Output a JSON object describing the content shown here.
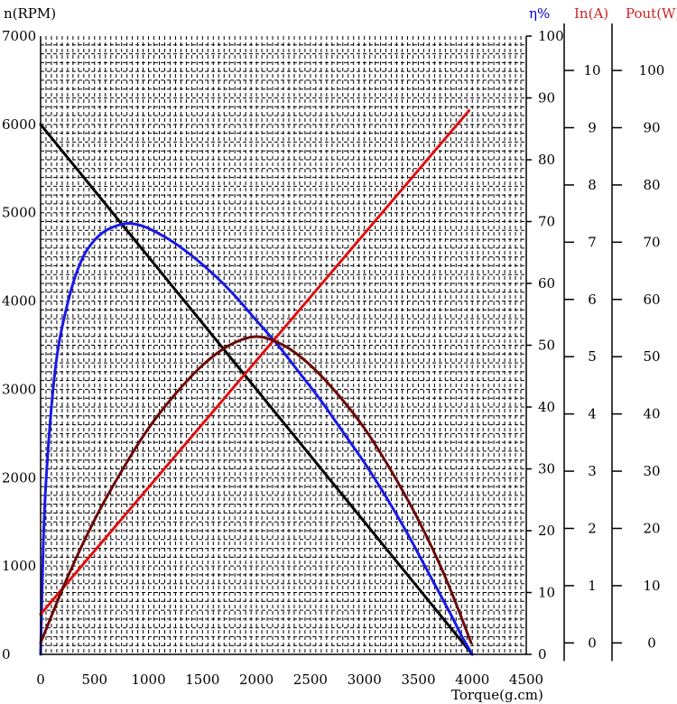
{
  "chart_data": {
    "type": "line",
    "xlabel": "Torque(g.cm)",
    "xlim": [
      0,
      4500
    ],
    "x_ticks": [
      0,
      500,
      1000,
      1500,
      2000,
      2500,
      3000,
      3500,
      4000,
      4500
    ],
    "grid": true,
    "axes": {
      "speed": {
        "label": "n(RPM)",
        "color": "#000000",
        "lim": [
          0,
          7000
        ],
        "ticks": [
          0,
          1000,
          2000,
          3000,
          4000,
          5000,
          6000,
          7000
        ]
      },
      "efficiency": {
        "label": "η%",
        "color": "#0000cc",
        "lim": [
          0,
          100
        ],
        "ticks": [
          0,
          10,
          20,
          30,
          40,
          50,
          60,
          70,
          80,
          90,
          100
        ]
      },
      "current": {
        "label": "In(A)",
        "color": "#cc2222",
        "lim": [
          -0.2,
          10.6
        ],
        "ticks": [
          0,
          1,
          2,
          3,
          4,
          5,
          6,
          7,
          8,
          9,
          10
        ]
      },
      "power": {
        "label": "Pout(W)",
        "color": "#cc2222",
        "lim": [
          -2,
          106
        ],
        "ticks": [
          0,
          10,
          20,
          30,
          40,
          50,
          60,
          70,
          80,
          90,
          100
        ]
      }
    },
    "series": [
      {
        "axis": "speed",
        "color": "#000000",
        "x": [
          0,
          4000
        ],
        "y": [
          6000,
          0
        ]
      },
      {
        "axis": "efficiency",
        "color": "#1a1ae6",
        "x": [
          0,
          25,
          50,
          100,
          150,
          200,
          300,
          400,
          500,
          600,
          700,
          800,
          900,
          1000,
          1200,
          1400,
          1600,
          1800,
          2000,
          2200,
          2400,
          2600,
          2800,
          3000,
          3200,
          3400,
          3600,
          3800,
          3900,
          4000
        ],
        "y": [
          0,
          18,
          28,
          40,
          48,
          53,
          60,
          64.5,
          67,
          68.5,
          69.3,
          69.7,
          69.5,
          68.9,
          67,
          64.5,
          61.5,
          58,
          54,
          50,
          45.5,
          41,
          36,
          31,
          25.5,
          19.5,
          13,
          6.5,
          3,
          0
        ]
      },
      {
        "axis": "current",
        "color": "#dd1111",
        "x": [
          0,
          3970
        ],
        "y": [
          0.5,
          9.3
        ]
      },
      {
        "axis": "power",
        "color": "#6b0a0a",
        "x": [
          0,
          250,
          500,
          750,
          1000,
          1250,
          1500,
          1750,
          2000,
          2250,
          2500,
          2750,
          3000,
          3250,
          3500,
          3750,
          3990
        ],
        "y": [
          0,
          11.5,
          21.5,
          30,
          37.5,
          43.5,
          48.5,
          52,
          53.5,
          52,
          48.5,
          43.5,
          37.5,
          30,
          21.5,
          11.5,
          0
        ]
      }
    ]
  }
}
